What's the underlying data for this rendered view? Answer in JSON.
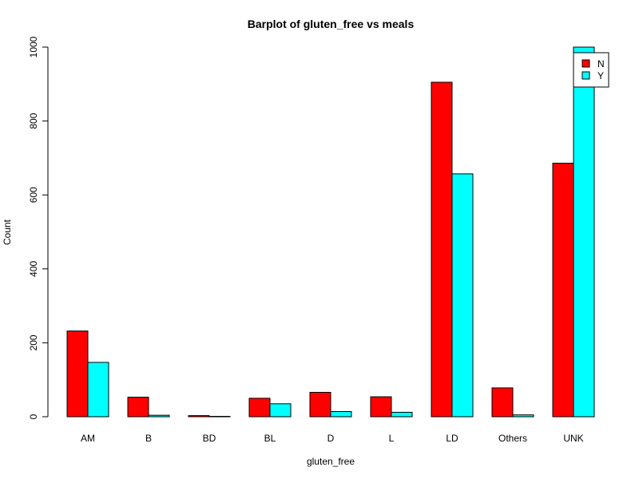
{
  "chart_data": {
    "type": "bar",
    "title": "Barplot of gluten_free vs meals",
    "xlabel": "gluten_free",
    "ylabel": "Count",
    "ylim": [
      0,
      1000
    ],
    "yticks": [
      0,
      200,
      400,
      600,
      800,
      1000
    ],
    "categories": [
      "AM",
      "B",
      "BD",
      "BL",
      "D",
      "L",
      "LD",
      "Others",
      "UNK"
    ],
    "series": [
      {
        "name": "N",
        "color": "#ff0000",
        "values": [
          232,
          53,
          3,
          50,
          66,
          54,
          905,
          78,
          686
        ]
      },
      {
        "name": "Y",
        "color": "#00ffff",
        "values": [
          147,
          4,
          1,
          35,
          14,
          12,
          657,
          5,
          1000
        ]
      }
    ],
    "grid": false,
    "legend_position": "top-right",
    "barmode": "grouped"
  }
}
